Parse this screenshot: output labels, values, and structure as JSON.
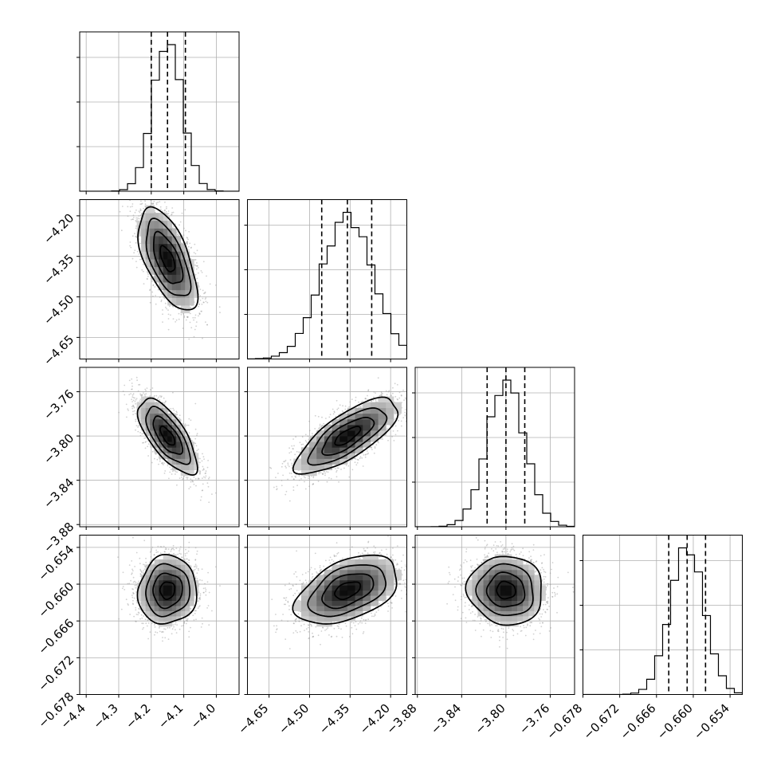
{
  "chart_data": {
    "type": "corner",
    "grid": true,
    "parameters": [
      {
        "range": [
          -4.42,
          -3.93
        ],
        "ticks": [
          -4.4,
          -4.3,
          -4.2,
          -4.1,
          -4.0
        ],
        "tick_labels": [
          "−4.4",
          "−4.3",
          "−4.2",
          "−4.1",
          "−4.0"
        ],
        "mean": -4.15,
        "sd": 0.045,
        "quantiles": [
          -4.2,
          -4.15,
          -4.095
        ]
      },
      {
        "range": [
          -4.73,
          -4.14
        ],
        "ticks": [
          -4.65,
          -4.5,
          -4.35,
          -4.2
        ],
        "tick_labels": [
          "−4.65",
          "−4.50",
          "−4.35",
          "−4.20"
        ],
        "mean": -4.36,
        "sd": 0.095,
        "quantiles": [
          -4.455,
          -4.36,
          -4.27
        ]
      },
      {
        "range": [
          -3.882,
          -3.738
        ],
        "ticks": [
          -3.88,
          -3.84,
          -3.8,
          -3.76
        ],
        "tick_labels": [
          "−3.88",
          "−3.84",
          "−3.80",
          "−3.76"
        ],
        "mean": -3.8,
        "sd": 0.017,
        "quantiles": [
          -3.817,
          -3.8,
          -3.783
        ]
      },
      {
        "range": [
          -0.678,
          -0.652
        ],
        "ticks": [
          -0.678,
          -0.672,
          -0.666,
          -0.66,
          -0.654
        ],
        "tick_labels": [
          "−0.678",
          "−0.672",
          "−0.666",
          "−0.660",
          "−0.654"
        ],
        "mean": -0.661,
        "sd": 0.0028,
        "quantiles": [
          -0.664,
          -0.661,
          -0.658
        ]
      }
    ],
    "correlations": [
      [
        1,
        -0.6,
        -0.7,
        0.05
      ],
      [
        -0.6,
        1,
        0.75,
        0.45
      ],
      [
        -0.7,
        0.75,
        1,
        -0.05
      ],
      [
        0.05,
        0.45,
        -0.05,
        1
      ]
    ],
    "histogram_bins": 20,
    "contour_levels_sigma": [
      0.5,
      1.0,
      1.5,
      2.0
    ],
    "colors": {
      "ink": "#000000",
      "grid": "#b0b0b0",
      "scatter": "#9a9a9a"
    }
  }
}
